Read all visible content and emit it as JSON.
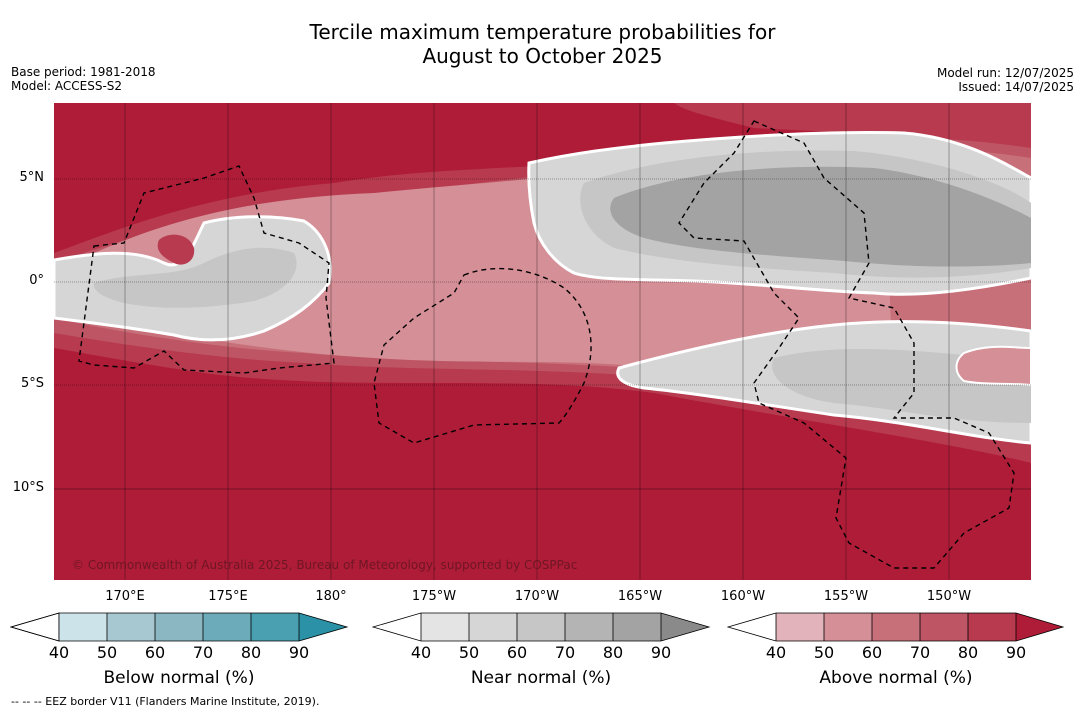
{
  "title_line1": "Tercile maximum temperature probabilities for",
  "title_line2": "August to October 2025",
  "base_period": "Base period: 1981-2018",
  "model": "Model: ACCESS-S2",
  "model_run": "Model run: 12/07/2025",
  "issued": "Issued: 14/07/2025",
  "lat_labels": [
    "5°N",
    "0°",
    "5°S",
    "10°S"
  ],
  "lon_labels": [
    "170°E",
    "175°E",
    "180°",
    "175°W",
    "170°W",
    "165°W",
    "160°W",
    "155°W",
    "150°W"
  ],
  "copyright": "© Commonwealth of Australia 2025, Bureau of Meteorology, supported by COSPPac",
  "colorbars": [
    {
      "title": "Below normal (%)",
      "ticks": [
        "40",
        "50",
        "60",
        "70",
        "80",
        "90"
      ],
      "colors": [
        "#cce3ea",
        "#a7c8d0",
        "#8ab7c2",
        "#6cabba",
        "#4aa0b0",
        "#2a91a6"
      ]
    },
    {
      "title": "Near normal (%)",
      "ticks": [
        "40",
        "50",
        "60",
        "70",
        "80",
        "90"
      ],
      "colors": [
        "#e4e4e4",
        "#d6d6d6",
        "#c6c6c6",
        "#b4b4b4",
        "#a3a3a3",
        "#8a8a8a"
      ]
    },
    {
      "title": "Above normal (%)",
      "ticks": [
        "40",
        "50",
        "60",
        "70",
        "80",
        "90"
      ],
      "colors": [
        "#e2b3ba",
        "#d58f97",
        "#c8707a",
        "#be5564",
        "#b73a4f",
        "#af1c38"
      ]
    }
  ],
  "footnote": "--  --  -- EEZ border V11 (Flanders Marine Institute, 2019)."
}
